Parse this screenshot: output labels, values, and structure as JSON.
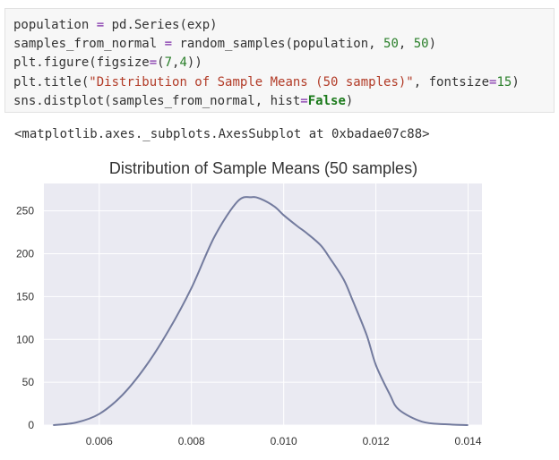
{
  "code_cell": {
    "lines": [
      [
        {
          "t": "population "
        },
        {
          "t": "=",
          "c": "op"
        },
        {
          "t": " pd.Series(exp)"
        }
      ],
      [
        {
          "t": "samples_from_normal "
        },
        {
          "t": "=",
          "c": "op"
        },
        {
          "t": " random_samples(population, "
        },
        {
          "t": "50",
          "c": "num"
        },
        {
          "t": ", "
        },
        {
          "t": "50",
          "c": "num"
        },
        {
          "t": ")"
        }
      ],
      [
        {
          "t": "plt.figure(figsize"
        },
        {
          "t": "=",
          "c": "op"
        },
        {
          "t": "("
        },
        {
          "t": "7",
          "c": "num"
        },
        {
          "t": ","
        },
        {
          "t": "4",
          "c": "num"
        },
        {
          "t": "))"
        }
      ],
      [
        {
          "t": "plt.title("
        },
        {
          "t": "\"Distribution of Sample Means (50 samples)\"",
          "c": "str"
        },
        {
          "t": ", fontsize"
        },
        {
          "t": "=",
          "c": "op"
        },
        {
          "t": "15",
          "c": "num"
        },
        {
          "t": ")"
        }
      ],
      [
        {
          "t": "sns.distplot(samples_from_normal, hist"
        },
        {
          "t": "=",
          "c": "op"
        },
        {
          "t": "False",
          "c": "kw"
        },
        {
          "t": ")"
        }
      ]
    ]
  },
  "output_text": "<matplotlib.axes._subplots.AxesSubplot at 0xbadae07c88>",
  "colors": {
    "plot_background": "#eaeaf2",
    "grid": "#ffffff",
    "line": "#737b9e",
    "text": "#333333"
  },
  "chart_data": {
    "type": "line",
    "title": "Distribution of Sample Means (50 samples)",
    "xlabel": "",
    "ylabel": "",
    "xlim": [
      0.0048,
      0.0143
    ],
    "ylim": [
      0,
      282
    ],
    "xticks": [
      0.006,
      0.008,
      0.01,
      0.012,
      0.014
    ],
    "xtick_labels": [
      "0.006",
      "0.008",
      "0.010",
      "0.012",
      "0.014"
    ],
    "yticks": [
      0,
      50,
      100,
      150,
      200,
      250
    ],
    "ytick_labels": [
      "0",
      "50",
      "100",
      "150",
      "200",
      "250"
    ],
    "grid": true,
    "series": [
      {
        "x": [
          0.005,
          0.0055,
          0.006,
          0.0065,
          0.007,
          0.0075,
          0.008,
          0.0085,
          0.009,
          0.0093,
          0.0095,
          0.0098,
          0.01,
          0.0103,
          0.0105,
          0.0108,
          0.011,
          0.0113,
          0.0115,
          0.0118,
          0.012,
          0.0123,
          0.0125,
          0.013,
          0.0135,
          0.014
        ],
        "y": [
          0,
          3,
          13,
          35,
          68,
          110,
          160,
          220,
          261,
          266,
          264,
          255,
          245,
          232,
          224,
          210,
          195,
          170,
          145,
          105,
          70,
          36,
          18,
          4,
          1,
          0
        ]
      }
    ]
  }
}
